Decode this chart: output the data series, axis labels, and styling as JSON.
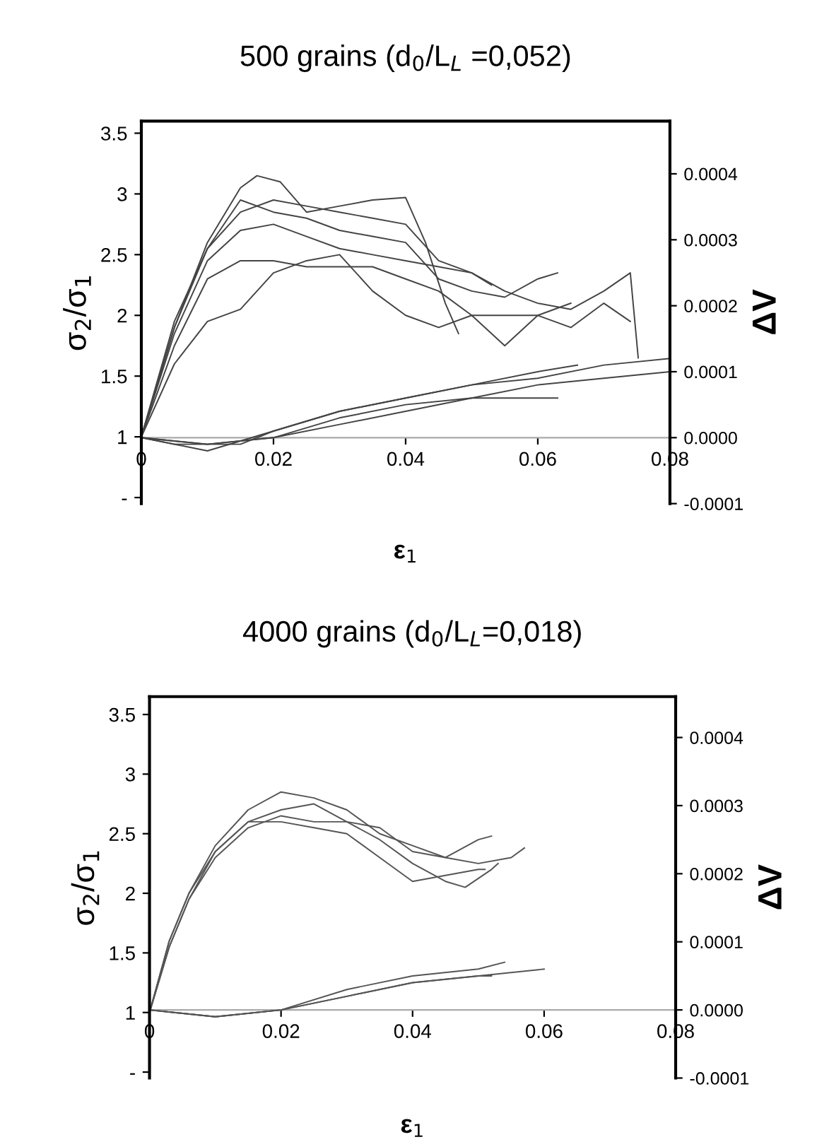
{
  "chart_data": [
    {
      "type": "line",
      "title": "500 grains (d$_{0}$/L$_{L}$ =0,052)",
      "xlabel": "ε$_{1}$",
      "ylabel": "σ$_{2}$/σ$_{1}$",
      "y2label": "ΔV",
      "xlim": [
        0,
        0.08
      ],
      "ylim": [
        0.45,
        3.6
      ],
      "y2lim": [
        -0.0001,
        0.00048
      ],
      "xticks": [
        0,
        0.02,
        0.04,
        0.06,
        0.08
      ],
      "yticks": [
        {
          "value": 0.5,
          "label": "-"
        },
        1,
        1.5,
        2,
        2.5,
        3,
        3.5
      ],
      "y2ticks": [
        {
          "value": -0.0001,
          "label": "-0.0001"
        },
        {
          "value": 0,
          "label": "0.0000"
        },
        {
          "value": 0.0001,
          "label": "0.0001"
        },
        {
          "value": 0.0002,
          "label": "0.0002"
        },
        {
          "value": 0.0003,
          "label": "0.0003"
        },
        {
          "value": 0.0004,
          "label": "0.0004"
        }
      ],
      "marker": "none",
      "line_style": "solid",
      "grid": false,
      "legend": false,
      "series": [
        {
          "color": "#444444",
          "x": [
            0,
            0.005,
            0.01,
            0.015,
            0.0175,
            0.021,
            0.025,
            0.03,
            0.035,
            0.04,
            0.043,
            0.046,
            0.048
          ],
          "values": [
            1,
            1.9,
            2.6,
            3.05,
            3.15,
            3.1,
            2.85,
            2.9,
            2.95,
            2.97,
            2.6,
            2.1,
            1.85
          ]
        },
        {
          "color": "#444444",
          "x": [
            0,
            0.005,
            0.01,
            0.015,
            0.02,
            0.025,
            0.03,
            0.035,
            0.04,
            0.045,
            0.05,
            0.055,
            0.06,
            0.063
          ],
          "values": [
            1,
            1.9,
            2.55,
            2.95,
            2.85,
            2.8,
            2.7,
            2.65,
            2.6,
            2.3,
            2.2,
            2.15,
            2.3,
            2.35
          ]
        },
        {
          "color": "#444444",
          "x": [
            0,
            0.005,
            0.01,
            0.015,
            0.02,
            0.025,
            0.03,
            0.035,
            0.04,
            0.045,
            0.05,
            0.055,
            0.06,
            0.065,
            0.07,
            0.074,
            0.0752
          ],
          "values": [
            1,
            1.85,
            2.45,
            2.7,
            2.75,
            2.65,
            2.55,
            2.5,
            2.45,
            2.4,
            2.35,
            2.2,
            2.1,
            2.05,
            2.2,
            2.35,
            1.65
          ]
        },
        {
          "color": "#444444",
          "x": [
            0,
            0.005,
            0.01,
            0.015,
            0.02,
            0.025,
            0.03,
            0.035,
            0.04,
            0.045,
            0.05,
            0.055,
            0.06,
            0.065,
            0.07,
            0.074
          ],
          "values": [
            1,
            1.75,
            2.3,
            2.45,
            2.45,
            2.4,
            2.4,
            2.4,
            2.3,
            2.2,
            2.0,
            1.75,
            2.0,
            1.9,
            2.1,
            1.95
          ]
        },
        {
          "color": "#444444",
          "x": [
            0,
            0.005,
            0.01,
            0.015,
            0.02,
            0.025,
            0.03,
            0.035,
            0.04,
            0.045,
            0.05,
            0.055,
            0.06,
            0.065
          ],
          "values": [
            1,
            1.6,
            1.95,
            2.05,
            2.35,
            2.45,
            2.5,
            2.2,
            2.0,
            1.9,
            2.0,
            2.0,
            2.0,
            2.1
          ]
        },
        {
          "color": "#444444",
          "x": [
            0,
            0.005,
            0.01,
            0.015,
            0.02,
            0.025,
            0.03,
            0.035,
            0.04,
            0.045,
            0.05,
            0.053
          ],
          "values": [
            1,
            1.95,
            2.55,
            2.85,
            2.95,
            2.9,
            2.85,
            2.8,
            2.75,
            2.45,
            2.35,
            2.25
          ]
        },
        {
          "color": "#444444",
          "axis": "y2",
          "x": [
            0,
            0.005,
            0.01,
            0.015,
            0.02,
            0.03,
            0.04,
            0.05,
            0.06,
            0.07,
            0.08
          ],
          "values": [
            0,
            -1e-05,
            -1e-05,
            -1e-05,
            1e-05,
            4e-05,
            6e-05,
            8e-05,
            9e-05,
            0.00011,
            0.00012
          ]
        },
        {
          "color": "#444444",
          "axis": "y2",
          "x": [
            0,
            0.01,
            0.02,
            0.03,
            0.04,
            0.05,
            0.06,
            0.066
          ],
          "values": [
            0,
            -2e-05,
            1e-05,
            4e-05,
            6e-05,
            8e-05,
            0.0001,
            0.00011
          ]
        },
        {
          "color": "#444444",
          "axis": "y2",
          "x": [
            0,
            0.01,
            0.02,
            0.03,
            0.04,
            0.05,
            0.06,
            0.07,
            0.08
          ],
          "values": [
            0,
            -1e-05,
            0,
            2e-05,
            4e-05,
            6e-05,
            8e-05,
            9e-05,
            0.0001
          ]
        },
        {
          "color": "#444444",
          "axis": "y2",
          "x": [
            0,
            0.01,
            0.02,
            0.03,
            0.04,
            0.05,
            0.063
          ],
          "values": [
            0,
            -1e-05,
            0,
            3e-05,
            5e-05,
            6e-05,
            6e-05
          ]
        }
      ]
    },
    {
      "type": "line",
      "title": "4000 grains (d$_{0}$/L$_{L}$=0,018)",
      "xlabel": "ε$_{1}$",
      "ylabel": "σ$_{2}$/σ$_{1}$",
      "y2label": "ΔV",
      "xlim": [
        0,
        0.08
      ],
      "ylim": [
        0.45,
        3.65
      ],
      "y2lim": [
        -0.0001,
        0.00046
      ],
      "xticks": [
        0,
        0.02,
        0.04,
        0.06,
        0.08
      ],
      "yticks": [
        {
          "value": 0.5,
          "label": "-"
        },
        1,
        1.5,
        2,
        2.5,
        3,
        3.5
      ],
      "y2ticks": [
        {
          "value": -0.0001,
          "label": "-0.0001"
        },
        {
          "value": 0,
          "label": "0.0000"
        },
        {
          "value": 0.0001,
          "label": "0.0001"
        },
        {
          "value": 0.0002,
          "label": "0.0002"
        },
        {
          "value": 0.0003,
          "label": "0.0003"
        },
        {
          "value": 0.0004,
          "label": "0.0004"
        }
      ],
      "marker": "none",
      "line_style": "solid",
      "grid": false,
      "legend": false,
      "series": [
        {
          "color": "#555555",
          "x": [
            0,
            0.003,
            0.006,
            0.01,
            0.015,
            0.02,
            0.025,
            0.03,
            0.035,
            0.04,
            0.045,
            0.05,
            0.055,
            0.057
          ],
          "values": [
            1,
            1.6,
            2.0,
            2.4,
            2.7,
            2.85,
            2.8,
            2.7,
            2.5,
            2.4,
            2.3,
            2.25,
            2.3,
            2.38
          ]
        },
        {
          "color": "#555555",
          "x": [
            0,
            0.003,
            0.006,
            0.01,
            0.015,
            0.02,
            0.025,
            0.03,
            0.035,
            0.04,
            0.045,
            0.048,
            0.052,
            0.053
          ],
          "values": [
            1,
            1.55,
            1.95,
            2.3,
            2.55,
            2.65,
            2.6,
            2.6,
            2.45,
            2.25,
            2.1,
            2.05,
            2.2,
            2.25
          ]
        },
        {
          "color": "#555555",
          "x": [
            0,
            0.003,
            0.006,
            0.01,
            0.015,
            0.02,
            0.025,
            0.03,
            0.035,
            0.04,
            0.045,
            0.05,
            0.052
          ],
          "values": [
            1,
            1.6,
            2.0,
            2.35,
            2.6,
            2.7,
            2.75,
            2.6,
            2.55,
            2.35,
            2.3,
            2.45,
            2.48
          ]
        },
        {
          "color": "#555555",
          "x": [
            0,
            0.003,
            0.006,
            0.01,
            0.015,
            0.02,
            0.025,
            0.03,
            0.035,
            0.04,
            0.045,
            0.05,
            0.051
          ],
          "values": [
            1,
            1.55,
            1.95,
            2.35,
            2.6,
            2.6,
            2.55,
            2.5,
            2.3,
            2.1,
            2.15,
            2.2,
            2.2
          ]
        },
        {
          "color": "#555555",
          "axis": "y2",
          "x": [
            0,
            0.01,
            0.02,
            0.03,
            0.04,
            0.05,
            0.06
          ],
          "values": [
            0,
            -1e-05,
            0,
            2e-05,
            4e-05,
            5e-05,
            6e-05
          ]
        },
        {
          "color": "#555555",
          "axis": "y2",
          "x": [
            0,
            0.01,
            0.02,
            0.03,
            0.04,
            0.05,
            0.054
          ],
          "values": [
            0,
            -1e-05,
            0,
            3e-05,
            5e-05,
            6e-05,
            7e-05
          ]
        },
        {
          "color": "#555555",
          "axis": "y2",
          "x": [
            0,
            0.01,
            0.02,
            0.03,
            0.04,
            0.05,
            0.052
          ],
          "values": [
            0,
            -1e-05,
            0,
            2e-05,
            4e-05,
            5e-05,
            5e-05
          ]
        }
      ]
    }
  ]
}
